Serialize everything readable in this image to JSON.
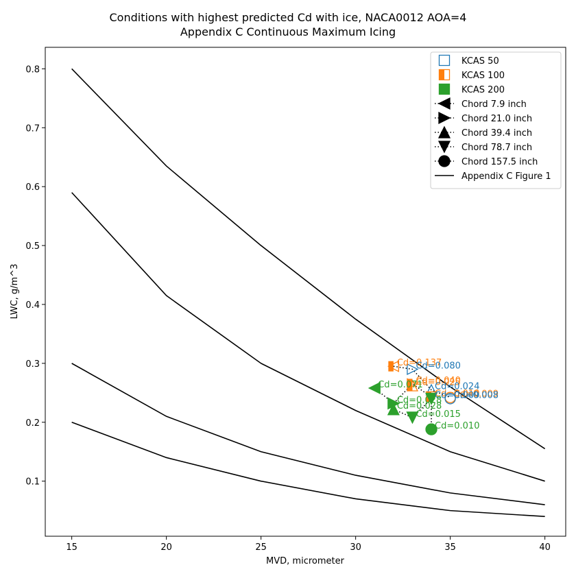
{
  "chart_data": {
    "type": "scatter",
    "title": "Conditions with highest predicted Cd with ice, NACA0012 AOA=4",
    "subtitle": "Appendix C Continuous Maximum Icing",
    "xlabel": "MVD, micrometer",
    "ylabel": "LWC, g/m^3",
    "xlim": [
      13.6,
      41.1
    ],
    "ylim": [
      0.0065,
      0.8365
    ],
    "x_ticks": [
      "15",
      "20",
      "25",
      "30",
      "35",
      "40"
    ],
    "y_ticks": [
      "0.1",
      "0.2",
      "0.3",
      "0.4",
      "0.5",
      "0.6",
      "0.7",
      "0.8"
    ],
    "grid": false,
    "legend_position": "top-right",
    "colors": {
      "kcas50": "#1f77b4",
      "kcas100": "#ff7f0e",
      "kcas200": "#2ca02c",
      "line": "#000000"
    },
    "legend": [
      {
        "label": "KCAS 50",
        "marker": "square",
        "fill": "none"
      },
      {
        "label": "KCAS 100",
        "marker": "square",
        "fill": "left"
      },
      {
        "label": "KCAS 200",
        "marker": "square",
        "fill": "full"
      },
      {
        "label": "Chord 7.9 inch",
        "marker": "triangle-left",
        "line": "dotted"
      },
      {
        "label": "Chord 21.0 inch",
        "marker": "triangle-right",
        "line": "dotted"
      },
      {
        "label": "Chord 39.4 inch",
        "marker": "triangle-up",
        "line": "dotted"
      },
      {
        "label": "Chord 78.7 inch",
        "marker": "triangle-down",
        "line": "dotted"
      },
      {
        "label": "Chord 157.5 inch",
        "marker": "circle",
        "line": "dotted"
      },
      {
        "label": "Appendix C Figure 1",
        "marker": "none",
        "line": "solid"
      }
    ],
    "reference_curves": [
      {
        "x": [
          15,
          20,
          25,
          30,
          35,
          40
        ],
        "y": [
          0.8,
          0.635,
          0.5,
          0.375,
          0.26,
          0.155
        ]
      },
      {
        "x": [
          15,
          20,
          25,
          30,
          35,
          40
        ],
        "y": [
          0.59,
          0.415,
          0.3,
          0.22,
          0.15,
          0.1
        ]
      },
      {
        "x": [
          15,
          20,
          25,
          30,
          35,
          40
        ],
        "y": [
          0.3,
          0.21,
          0.15,
          0.11,
          0.08,
          0.06
        ]
      },
      {
        "x": [
          15,
          20,
          25,
          30,
          35,
          40
        ],
        "y": [
          0.2,
          0.14,
          0.1,
          0.07,
          0.05,
          0.04
        ]
      }
    ],
    "chord_paths": [
      {
        "x": [
          32,
          33,
          34,
          35
        ],
        "y": [
          0.295,
          0.29,
          0.255,
          0.242
        ]
      },
      {
        "x": [
          31,
          32,
          33,
          34,
          34
        ],
        "y": [
          0.258,
          0.232,
          0.265,
          0.243,
          0.188
        ]
      },
      {
        "x": [
          32,
          33,
          34
        ],
        "y": [
          0.222,
          0.208,
          0.24
        ]
      }
    ],
    "points": [
      {
        "x": 32,
        "y": 0.295,
        "kcas": "100",
        "chord": "Chord 7.9 inch",
        "label": "Cd=0.137"
      },
      {
        "x": 33,
        "y": 0.29,
        "kcas": "50",
        "chord": "Chord 21.0 inch",
        "label": "Cd=0.080"
      },
      {
        "x": 33,
        "y": 0.265,
        "kcas": "100",
        "chord": "Chord 21.0 inch",
        "label": "Cd=0.040"
      },
      {
        "x": 33,
        "y": 0.262,
        "kcas": "100",
        "chord": "Chord 39.4 inch",
        "label": "Cd=0.025"
      },
      {
        "x": 34,
        "y": 0.255,
        "kcas": "50",
        "chord": "Chord 39.4 inch",
        "label": "Cd=0.024"
      },
      {
        "x": 31,
        "y": 0.258,
        "kcas": "200",
        "chord": "Chord 7.9 inch",
        "label": "Cd=0.071"
      },
      {
        "x": 34,
        "y": 0.243,
        "kcas": "100",
        "chord": "Chord 78.7 inch",
        "label": "Cd=0.010"
      },
      {
        "x": 34,
        "y": 0.24,
        "kcas": "50",
        "chord": "Chord 78.7 inch",
        "label": "Cd=0.009"
      },
      {
        "x": 35,
        "y": 0.242,
        "kcas": "100",
        "chord": "Chord 157.5 inch",
        "label": "Cd=0.009"
      },
      {
        "x": 35,
        "y": 0.24,
        "kcas": "50",
        "chord": "Chord 157.5 inch",
        "label": "Cd=0.008"
      },
      {
        "x": 32,
        "y": 0.232,
        "kcas": "200",
        "chord": "Chord 21.0 inch",
        "label": "Cd=0.028"
      },
      {
        "x": 32,
        "y": 0.222,
        "kcas": "200",
        "chord": "Chord 39.4 inch",
        "label": "Cd=0.028"
      },
      {
        "x": 34,
        "y": 0.24,
        "kcas": "200",
        "chord": "Chord 78.7 inch",
        "label": ""
      },
      {
        "x": 33,
        "y": 0.208,
        "kcas": "200",
        "chord": "Chord 78.7 inch",
        "label": "Cd=0.015"
      },
      {
        "x": 34,
        "y": 0.188,
        "kcas": "200",
        "chord": "Chord 157.5 inch",
        "label": "Cd=0.010"
      }
    ]
  }
}
